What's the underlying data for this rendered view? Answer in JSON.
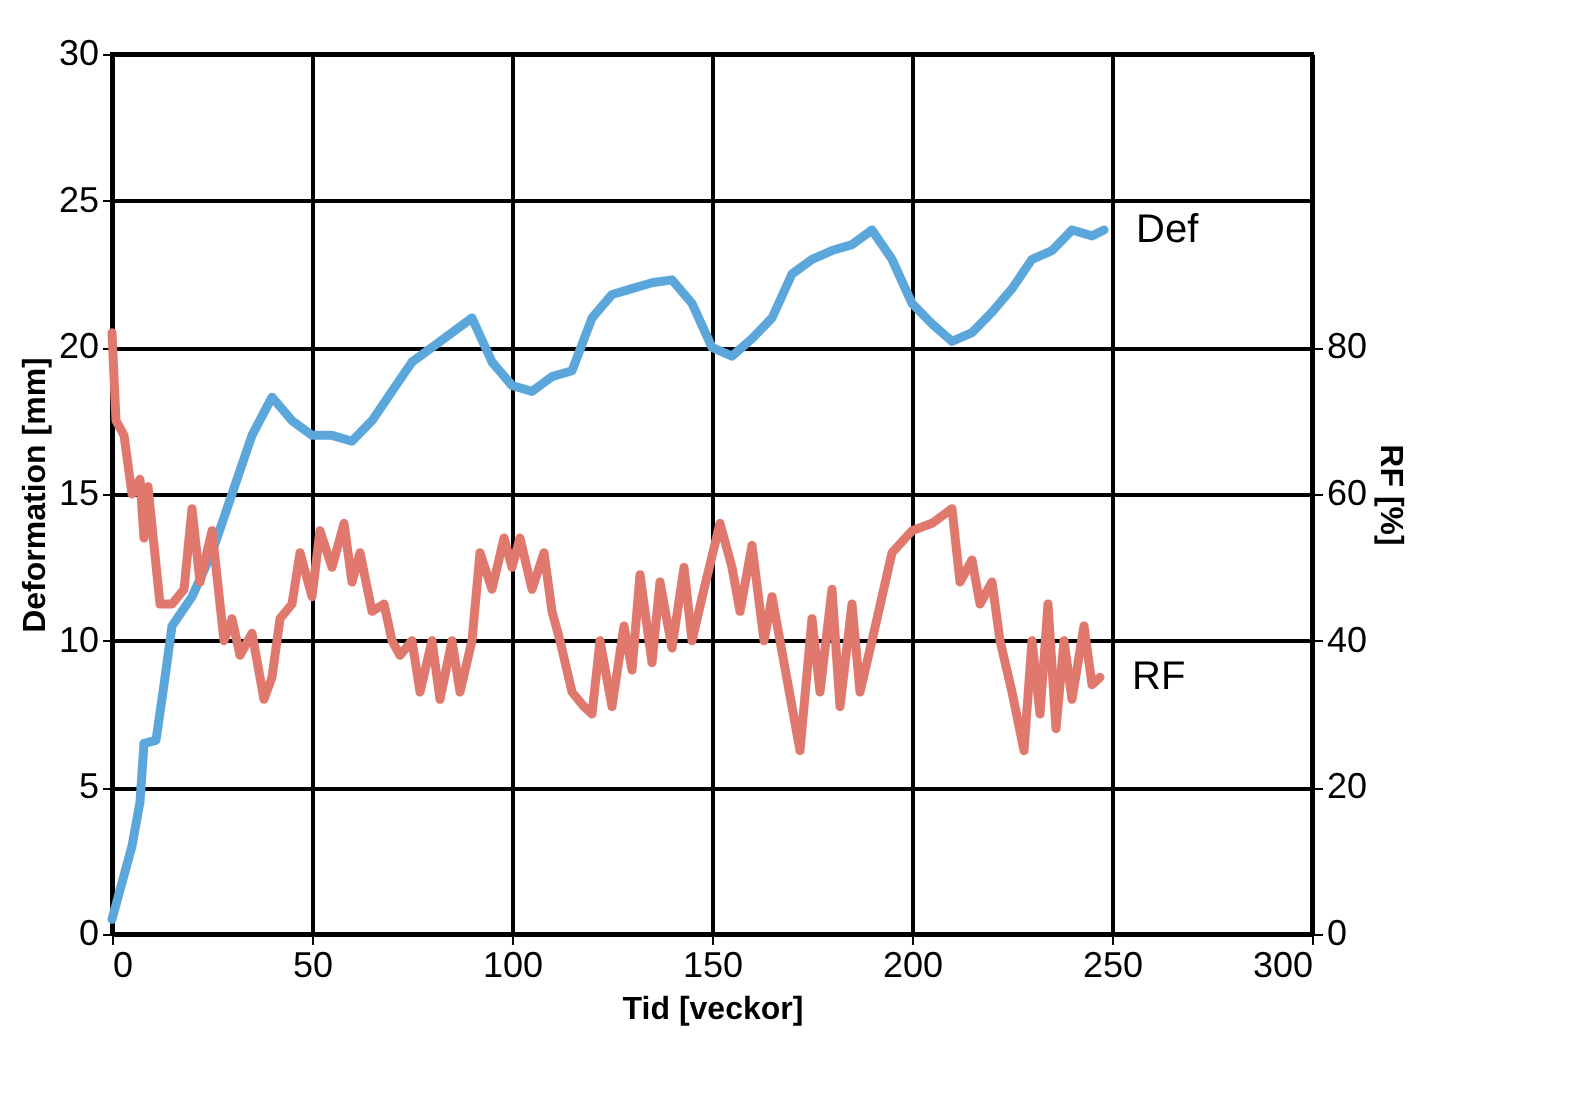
{
  "chart_data": {
    "type": "line",
    "xlabel": "Tid [veckor]",
    "ylabel": "Deformation [mm]",
    "y2label": "RF [%]",
    "xlim": [
      0,
      300
    ],
    "xticks": [
      0,
      50,
      100,
      150,
      200,
      250,
      300
    ],
    "ylim": [
      0,
      30
    ],
    "yticks": [
      0,
      5,
      10,
      15,
      20,
      25,
      30
    ],
    "y2lim": [
      0,
      120
    ],
    "y2ticks": [
      0,
      20,
      40,
      60,
      80
    ],
    "grid": true,
    "legend": false,
    "line_style": "solid",
    "marker": "none",
    "series": [
      {
        "name": "Def",
        "color": "#5ba7dc",
        "x": [
          0,
          3,
          5,
          7,
          8,
          11,
          13,
          15,
          20,
          25,
          30,
          35,
          40,
          45,
          50,
          55,
          60,
          65,
          70,
          75,
          80,
          85,
          90,
          95,
          100,
          105,
          110,
          115,
          120,
          125,
          130,
          135,
          140,
          145,
          150,
          155,
          160,
          165,
          170,
          175,
          180,
          185,
          190,
          195,
          200,
          205,
          210,
          215,
          220,
          225,
          230,
          235,
          240,
          245,
          248
        ],
        "values": [
          0.5,
          2,
          3,
          4.5,
          6.5,
          6.6,
          8.5,
          10.5,
          11.5,
          13,
          15,
          17,
          18.3,
          17.5,
          17,
          17,
          16.8,
          17.5,
          18.5,
          19.5,
          20,
          20.5,
          21,
          19.5,
          18.7,
          18.5,
          19,
          19.2,
          21,
          21.8,
          22,
          22.2,
          22.3,
          21.5,
          20,
          19.7,
          20.3,
          21,
          22.5,
          23,
          23.3,
          23.5,
          24,
          23,
          21.5,
          20.8,
          20.2,
          20.5,
          21.2,
          22,
          23,
          23.3,
          24,
          23.8,
          24
        ]
      },
      {
        "name": "RF",
        "color": "#e0786e",
        "axis": "y2",
        "x": [
          0,
          1,
          3,
          5,
          7,
          8,
          9,
          12,
          15,
          18,
          20,
          22,
          25,
          28,
          30,
          32,
          35,
          38,
          40,
          42,
          45,
          47,
          50,
          52,
          55,
          58,
          60,
          62,
          65,
          68,
          70,
          72,
          75,
          77,
          80,
          82,
          85,
          87,
          90,
          92,
          95,
          98,
          100,
          102,
          105,
          108,
          110,
          112,
          115,
          118,
          120,
          122,
          125,
          128,
          130,
          132,
          135,
          137,
          140,
          143,
          145,
          148,
          152,
          155,
          157,
          160,
          163,
          165,
          168,
          170,
          172,
          175,
          177,
          180,
          182,
          185,
          187,
          190,
          195,
          200,
          205,
          210,
          212,
          215,
          217,
          220,
          222,
          225,
          228,
          230,
          232,
          234,
          236,
          238,
          240,
          243,
          245,
          247
        ],
        "values": [
          82,
          70,
          68,
          60,
          62,
          54,
          61,
          45,
          45,
          47,
          58,
          48,
          55,
          40,
          43,
          38,
          41,
          32,
          35,
          43,
          45,
          52,
          46,
          55,
          50,
          56,
          48,
          52,
          44,
          45,
          40,
          38,
          40,
          33,
          40,
          32,
          40,
          33,
          40,
          52,
          47,
          54,
          50,
          54,
          47,
          52,
          44,
          40,
          33,
          31,
          30,
          40,
          31,
          42,
          36,
          49,
          37,
          48,
          39,
          50,
          40,
          47,
          56,
          50,
          44,
          53,
          40,
          46,
          37,
          31,
          25,
          43,
          33,
          47,
          31,
          45,
          33,
          40,
          52,
          55,
          56,
          58,
          48,
          51,
          45,
          48,
          40,
          33,
          25,
          40,
          30,
          45,
          28,
          40,
          32,
          42,
          34,
          35
        ]
      }
    ]
  }
}
